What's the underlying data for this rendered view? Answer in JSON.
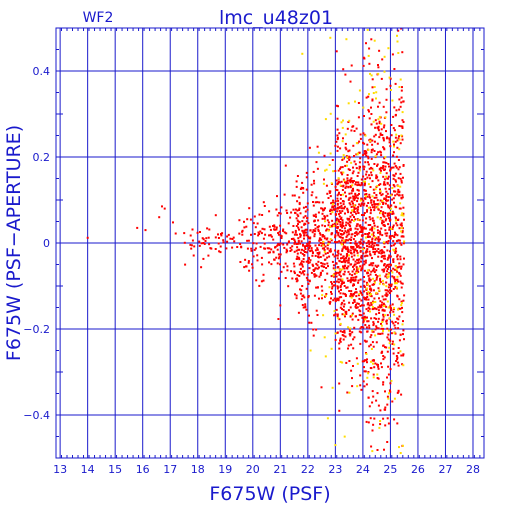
{
  "chart_data": {
    "type": "scatter",
    "title": "lmc_u48z01",
    "chip_label": "WF2",
    "xlabel": "F675W (PSF)",
    "ylabel": "F675W (PSF−APERTURE)",
    "xlim": [
      12.85,
      28.4
    ],
    "ylim": [
      -0.5,
      0.5
    ],
    "xticks": [
      13,
      14,
      15,
      16,
      17,
      18,
      19,
      20,
      21,
      22,
      23,
      24,
      25,
      26,
      27,
      28
    ],
    "yticks": [
      -0.4,
      -0.2,
      0,
      0.2,
      0.4
    ],
    "yticklabels": [
      "−0.4",
      "−0.2",
      "0",
      "0.2",
      "0.4"
    ],
    "grid": true,
    "colors": {
      "axes": "#1a1acc",
      "series_primary": "#ff0000",
      "series_secondary": "#ffdd00"
    },
    "series": [
      {
        "color": "#ff0000",
        "anchor_points": [
          [
            14.0,
            0.012
          ],
          [
            15.8,
            0.035
          ],
          [
            16.1,
            0.03
          ],
          [
            16.6,
            0.06
          ],
          [
            16.7,
            0.085
          ],
          [
            16.8,
            0.08
          ],
          [
            17.2,
            0.022
          ],
          [
            17.1,
            0.048
          ],
          [
            21.0,
            -0.145
          ],
          [
            21.2,
            0.18
          ]
        ],
        "clouds": [
          {
            "x_range": [
              17.5,
              19.5
            ],
            "y_mean": 0.005,
            "y_spread": 0.02,
            "count": 55
          },
          {
            "x_range": [
              19.5,
              21.5
            ],
            "y_mean": 0.005,
            "y_spread": 0.045,
            "count": 160
          },
          {
            "x_range": [
              21.5,
              23.0
            ],
            "y_mean": 0.0,
            "y_spread": 0.08,
            "count": 420
          },
          {
            "x_range": [
              23.0,
              24.0
            ],
            "y_mean": 0.0,
            "y_spread": 0.13,
            "count": 650
          },
          {
            "x_range": [
              24.0,
              25.0
            ],
            "y_mean": 0.0,
            "y_spread": 0.18,
            "count": 700
          },
          {
            "x_range": [
              25.0,
              25.5
            ],
            "y_mean": 0.02,
            "y_spread": 0.2,
            "count": 260
          }
        ]
      },
      {
        "color": "#ffdd00",
        "anchor_points": [
          [
            22.1,
            -0.25
          ],
          [
            22.4,
            0.21
          ],
          [
            23.0,
            -0.47
          ],
          [
            21.8,
            0.44
          ],
          [
            24.6,
            -0.43
          ],
          [
            25.4,
            0.25
          ]
        ],
        "clouds": [
          {
            "x_range": [
              22.5,
              24.0
            ],
            "y_mean": 0.0,
            "y_spread": 0.25,
            "count": 90
          },
          {
            "x_range": [
              24.0,
              25.5
            ],
            "y_mean": 0.0,
            "y_spread": 0.27,
            "count": 160
          }
        ]
      }
    ]
  }
}
